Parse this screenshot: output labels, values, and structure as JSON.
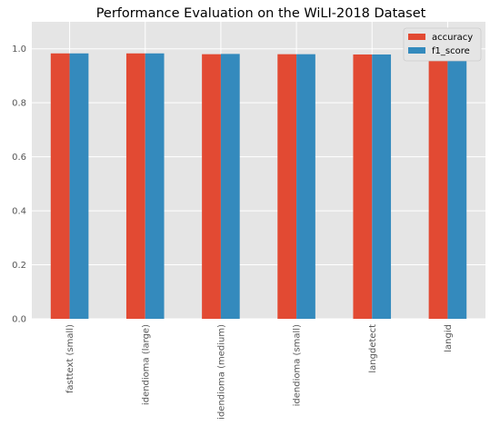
{
  "chart_data": {
    "type": "bar",
    "title": "Performance Evaluation on the WiLI-2018 Dataset",
    "xlabel": "",
    "ylabel": "",
    "categories": [
      "fasttext (small)",
      "idendioma (large)",
      "idendioma (medium)",
      "idendioma (small)",
      "langdetect",
      "langid"
    ],
    "series": [
      {
        "name": "accuracy",
        "color": "#E24A33",
        "values": [
          0.983,
          0.983,
          0.98,
          0.98,
          0.979,
          0.968
        ]
      },
      {
        "name": "f1_score",
        "color": "#348ABD",
        "values": [
          0.983,
          0.983,
          0.981,
          0.98,
          0.979,
          0.967
        ]
      }
    ],
    "ylim": [
      0,
      1.1
    ],
    "yticks": [
      "0.0",
      "0.2",
      "0.4",
      "0.6",
      "0.8",
      "1.0"
    ],
    "grid": true,
    "legend_position": "top-right",
    "colors": {
      "plot_background": "#E5E5E5",
      "grid": "#FFFFFF",
      "tick_text": "#555555"
    }
  }
}
